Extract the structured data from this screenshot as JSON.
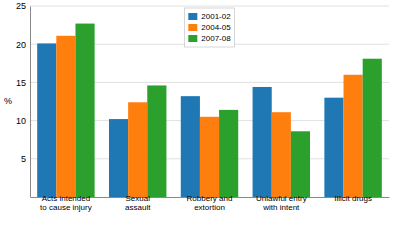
{
  "chart_data": {
    "type": "bar",
    "categories": [
      "Acts intended\nto cause injury",
      "Sexual\nassault",
      "Robbery and\nextortion",
      "Unlawful entry\nwith intent",
      "Illicit drugs"
    ],
    "series": [
      {
        "name": "2001-02",
        "values": [
          20.1,
          10.2,
          13.2,
          14.4,
          13.0
        ]
      },
      {
        "name": "2004-05",
        "values": [
          21.1,
          12.4,
          10.5,
          11.1,
          16.0
        ]
      },
      {
        "name": "2007-08",
        "values": [
          22.7,
          14.6,
          11.4,
          8.6,
          18.1
        ]
      }
    ],
    "ylabel": "%",
    "ylim": [
      0,
      25
    ],
    "yticks": [
      5,
      10,
      15,
      20,
      25
    ],
    "grid": true,
    "legend": "upper center"
  }
}
